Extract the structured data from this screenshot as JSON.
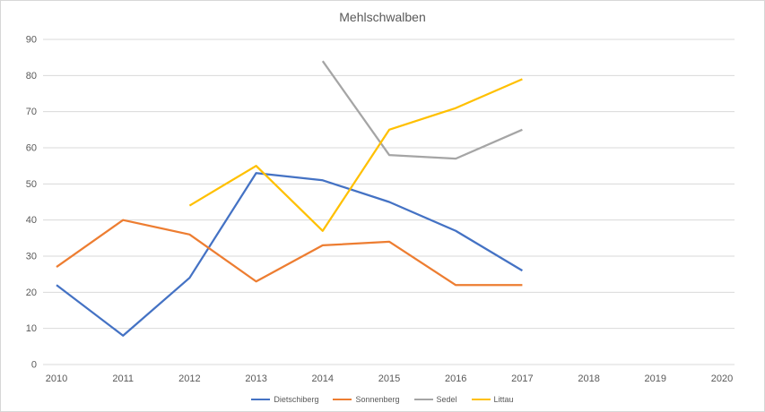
{
  "chart_data": {
    "type": "line",
    "title": "Mehlschwalben",
    "xlabel": "",
    "ylabel": "",
    "categories": [
      "2010",
      "2011",
      "2012",
      "2013",
      "2014",
      "2015",
      "2016",
      "2017",
      "2018",
      "2019",
      "2020"
    ],
    "yticks": [
      0,
      10,
      20,
      30,
      40,
      50,
      60,
      70,
      80,
      90
    ],
    "ylim": [
      0,
      90
    ],
    "grid": true,
    "legend_position": "bottom",
    "series": [
      {
        "name": "Dietschiberg",
        "color": "#4472C4",
        "values": [
          22,
          8,
          24,
          53,
          51,
          45,
          37,
          26,
          null,
          null,
          null
        ]
      },
      {
        "name": "Sonnenberg",
        "color": "#ED7D31",
        "values": [
          27,
          40,
          36,
          23,
          33,
          34,
          22,
          22,
          null,
          null,
          null
        ]
      },
      {
        "name": "Sedel",
        "color": "#A5A5A5",
        "values": [
          null,
          null,
          null,
          null,
          84,
          58,
          57,
          65,
          null,
          null,
          null
        ]
      },
      {
        "name": "Littau",
        "color": "#FFC000",
        "values": [
          null,
          null,
          44,
          55,
          37,
          65,
          71,
          79,
          null,
          null,
          null
        ]
      }
    ]
  },
  "colors": {
    "grid": "#D9D9D9",
    "axis_text": "#595959",
    "title_text": "#595959",
    "frame_border": "#D7D7D7",
    "background": "#FFFFFF"
  }
}
